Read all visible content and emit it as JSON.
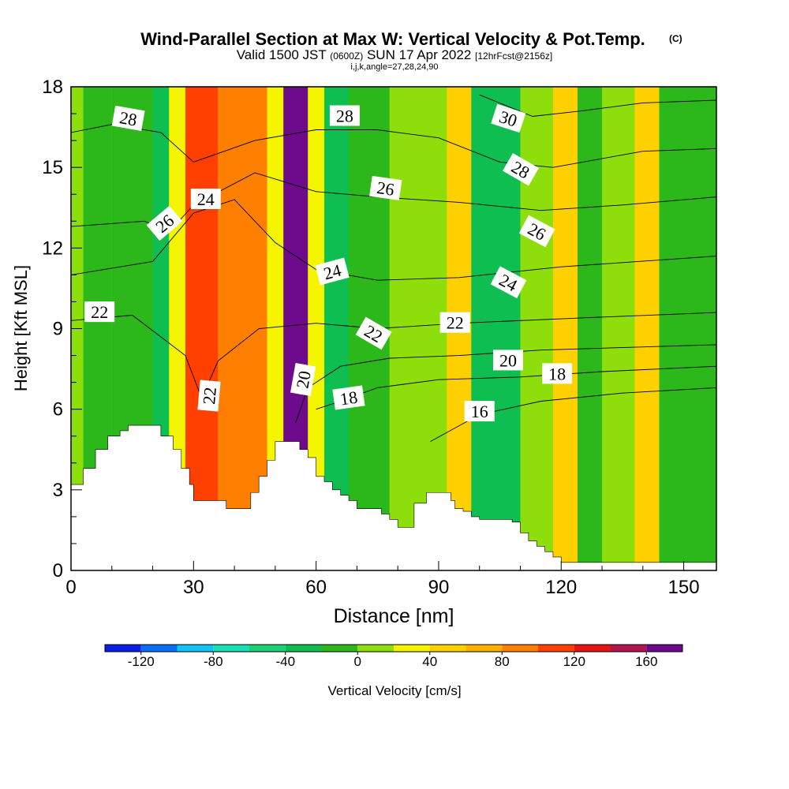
{
  "chart_data": {
    "type": "heatmap",
    "title": "Wind-Parallel Section at Max W: Vertical Velocity & Pot.Temp.",
    "copyright_mark": "(C)",
    "subtitle": {
      "main_a": "Valid 1500 JST",
      "utc": "(0600Z)",
      "main_b": "SUN 17 Apr 2022",
      "forecast": "[12hrFcst@2156z]"
    },
    "subtitle2": "i,j,k,angle=27,28,24,90",
    "xlabel": "Distance [nm]",
    "ylabel": "Height [Kft MSL]",
    "xlim": [
      0,
      158
    ],
    "ylim": [
      0,
      18
    ],
    "xticks": [
      0,
      30,
      60,
      90,
      120,
      150
    ],
    "yticks": [
      0,
      3,
      6,
      9,
      12,
      15,
      18
    ],
    "colorbar": {
      "label": "Vertical Velocity [cm/s]",
      "levels": [
        -140,
        -120,
        -100,
        -80,
        -60,
        -40,
        -20,
        0,
        20,
        40,
        60,
        80,
        100,
        120,
        140,
        160,
        180
      ],
      "colors": [
        "#0a1ee6",
        "#0a6ef5",
        "#10c4f4",
        "#16e0b4",
        "#1ecf78",
        "#0fbe50",
        "#2cb81a",
        "#8ede0c",
        "#f5f500",
        "#ffd000",
        "#ffb000",
        "#ff7f00",
        "#ff4000",
        "#e61414",
        "#b4144e",
        "#6e0a8c"
      ],
      "tick_values": [
        -120,
        -80,
        -40,
        0,
        40,
        80,
        120,
        160
      ],
      "tick_labels": [
        "-120",
        "-80",
        "-40",
        "0",
        "40",
        "80",
        "120",
        "160"
      ]
    },
    "vertical_velocity_bands": [
      {
        "x_range": [
          0,
          3
        ],
        "value_cm_s": 5
      },
      {
        "x_range": [
          3,
          10
        ],
        "value_cm_s": -15
      },
      {
        "x_range": [
          10,
          20
        ],
        "value_cm_s": -10
      },
      {
        "x_range": [
          20,
          24
        ],
        "value_cm_s": -40
      },
      {
        "x_range": [
          24,
          28
        ],
        "value_cm_s": 30
      },
      {
        "x_range": [
          28,
          36
        ],
        "value_cm_s": 110
      },
      {
        "x_range": [
          36,
          48
        ],
        "value_cm_s": 85
      },
      {
        "x_range": [
          48,
          52
        ],
        "value_cm_s": 30
      },
      {
        "x_range": [
          52,
          58
        ],
        "value_cm_s": 165
      },
      {
        "x_range": [
          58,
          62
        ],
        "value_cm_s": 30
      },
      {
        "x_range": [
          62,
          68
        ],
        "value_cm_s": -40
      },
      {
        "x_range": [
          68,
          78
        ],
        "value_cm_s": -20
      },
      {
        "x_range": [
          78,
          92
        ],
        "value_cm_s": 10
      },
      {
        "x_range": [
          92,
          98
        ],
        "value_cm_s": 40
      },
      {
        "x_range": [
          98,
          110
        ],
        "value_cm_s": -25
      },
      {
        "x_range": [
          110,
          118
        ],
        "value_cm_s": 10
      },
      {
        "x_range": [
          118,
          124
        ],
        "value_cm_s": 40
      },
      {
        "x_range": [
          124,
          130
        ],
        "value_cm_s": -10
      },
      {
        "x_range": [
          130,
          138
        ],
        "value_cm_s": 10
      },
      {
        "x_range": [
          138,
          144
        ],
        "value_cm_s": 40
      },
      {
        "x_range": [
          144,
          158
        ],
        "value_cm_s": -10
      }
    ],
    "terrain": [
      [
        0,
        3.2
      ],
      [
        3,
        3.8
      ],
      [
        6,
        4.5
      ],
      [
        9,
        5
      ],
      [
        12,
        5.2
      ],
      [
        14,
        5.4
      ],
      [
        20,
        5.4
      ],
      [
        22,
        5
      ],
      [
        25,
        4.5
      ],
      [
        27,
        3.8
      ],
      [
        29,
        3.2
      ],
      [
        30,
        2.6
      ],
      [
        36,
        2.6
      ],
      [
        38,
        2.3
      ],
      [
        42,
        2.3
      ],
      [
        44,
        2.9
      ],
      [
        46,
        3.5
      ],
      [
        48,
        4.1
      ],
      [
        50,
        4.8
      ],
      [
        55,
        4.8
      ],
      [
        56,
        4.5
      ],
      [
        58,
        4.2
      ],
      [
        60,
        3.5
      ],
      [
        62,
        3.3
      ],
      [
        64,
        3
      ],
      [
        66,
        2.8
      ],
      [
        68,
        2.6
      ],
      [
        70,
        2.3
      ],
      [
        76,
        2.1
      ],
      [
        78,
        1.9
      ],
      [
        80,
        1.6
      ],
      [
        82,
        1.6
      ],
      [
        84,
        2.5
      ],
      [
        87,
        2.9
      ],
      [
        92,
        2.9
      ],
      [
        93,
        2.6
      ],
      [
        94,
        2.3
      ],
      [
        96,
        2.2
      ],
      [
        98,
        2.0
      ],
      [
        100,
        1.9
      ],
      [
        106,
        1.9
      ],
      [
        108,
        1.8
      ],
      [
        110,
        1.4
      ],
      [
        112,
        1.1
      ],
      [
        114,
        0.9
      ],
      [
        116,
        0.7
      ],
      [
        118,
        0.5
      ],
      [
        120,
        0.3
      ],
      [
        158,
        0.3
      ]
    ],
    "theta_contours": [
      {
        "label": "16",
        "points": [
          [
            88,
            4.8
          ],
          [
            100,
            5.8
          ],
          [
            115,
            6.3
          ],
          [
            135,
            6.6
          ],
          [
            158,
            6.8
          ]
        ]
      },
      {
        "label": "18",
        "points": [
          [
            60,
            6
          ],
          [
            66,
            6.3
          ],
          [
            75,
            6.8
          ],
          [
            90,
            7.1
          ],
          [
            110,
            7.2
          ],
          [
            130,
            7.4
          ],
          [
            158,
            7.6
          ]
        ]
      },
      {
        "label": "20",
        "points": [
          [
            55,
            5.5
          ],
          [
            58,
            6.8
          ],
          [
            66,
            7.6
          ],
          [
            78,
            7.9
          ],
          [
            95,
            8
          ],
          [
            115,
            8.2
          ],
          [
            158,
            8.4
          ]
        ]
      },
      {
        "label": "22",
        "points": [
          [
            0,
            9.3
          ],
          [
            15,
            9.5
          ],
          [
            28,
            8
          ],
          [
            32,
            6.4
          ],
          [
            36,
            7.8
          ],
          [
            46,
            9
          ],
          [
            60,
            9.2
          ],
          [
            75,
            9
          ],
          [
            95,
            9.2
          ],
          [
            125,
            9.4
          ],
          [
            158,
            9.6
          ]
        ]
      },
      {
        "label": "24",
        "points": [
          [
            0,
            11
          ],
          [
            20,
            11.5
          ],
          [
            30,
            13.3
          ],
          [
            40,
            13.8
          ],
          [
            50,
            12.2
          ],
          [
            60,
            11.2
          ],
          [
            75,
            10.8
          ],
          [
            95,
            10.9
          ],
          [
            120,
            11.3
          ],
          [
            158,
            11.7
          ]
        ]
      },
      {
        "label": "26",
        "points": [
          [
            0,
            12.8
          ],
          [
            18,
            13
          ],
          [
            24,
            12.6
          ],
          [
            30,
            13.6
          ],
          [
            45,
            14.8
          ],
          [
            60,
            14.1
          ],
          [
            75,
            13.9
          ],
          [
            95,
            13.7
          ],
          [
            115,
            13.4
          ],
          [
            135,
            13.6
          ],
          [
            158,
            13.9
          ]
        ]
      },
      {
        "label": "28",
        "points": [
          [
            0,
            16.3
          ],
          [
            10,
            16.6
          ],
          [
            22,
            16.3
          ],
          [
            30,
            15.2
          ],
          [
            45,
            16
          ],
          [
            60,
            16.4
          ],
          [
            75,
            16.4
          ],
          [
            90,
            16.1
          ],
          [
            105,
            15.2
          ],
          [
            118,
            15
          ],
          [
            140,
            15.6
          ],
          [
            158,
            15.7
          ]
        ]
      },
      {
        "label": "30",
        "points": [
          [
            100,
            17.7
          ],
          [
            113,
            16.9
          ],
          [
            125,
            17.1
          ],
          [
            140,
            17.4
          ],
          [
            158,
            17.5
          ]
        ]
      }
    ],
    "contour_labels": [
      {
        "text": "28",
        "x": 14,
        "y": 16.8,
        "angle": 10
      },
      {
        "text": "28",
        "x": 67,
        "y": 16.9,
        "angle": 0
      },
      {
        "text": "30",
        "x": 107,
        "y": 16.8,
        "angle": 18
      },
      {
        "text": "28",
        "x": 110,
        "y": 14.9,
        "angle": 30
      },
      {
        "text": "26",
        "x": 77,
        "y": 14.2,
        "angle": 8
      },
      {
        "text": "26",
        "x": 114,
        "y": 12.6,
        "angle": 28
      },
      {
        "text": "26",
        "x": 23,
        "y": 12.9,
        "angle": -40
      },
      {
        "text": "24",
        "x": 33,
        "y": 13.8,
        "angle": 0
      },
      {
        "text": "24",
        "x": 64,
        "y": 11.1,
        "angle": -15
      },
      {
        "text": "24",
        "x": 107,
        "y": 10.7,
        "angle": 28
      },
      {
        "text": "22",
        "x": 7,
        "y": 9.6,
        "angle": 0
      },
      {
        "text": "22",
        "x": 74,
        "y": 8.8,
        "angle": 30
      },
      {
        "text": "22",
        "x": 94,
        "y": 9.2,
        "angle": 0
      },
      {
        "text": "20",
        "x": 107,
        "y": 7.8,
        "angle": 0
      },
      {
        "text": "20",
        "x": 57,
        "y": 7.1,
        "angle": -80
      },
      {
        "text": "22",
        "x": 34,
        "y": 6.5,
        "angle": -85
      },
      {
        "text": "18",
        "x": 68,
        "y": 6.4,
        "angle": -8
      },
      {
        "text": "18",
        "x": 119,
        "y": 7.3,
        "angle": 0
      },
      {
        "text": "16",
        "x": 100,
        "y": 5.9,
        "angle": 0
      }
    ],
    "grid": false,
    "legend": "bottom"
  }
}
